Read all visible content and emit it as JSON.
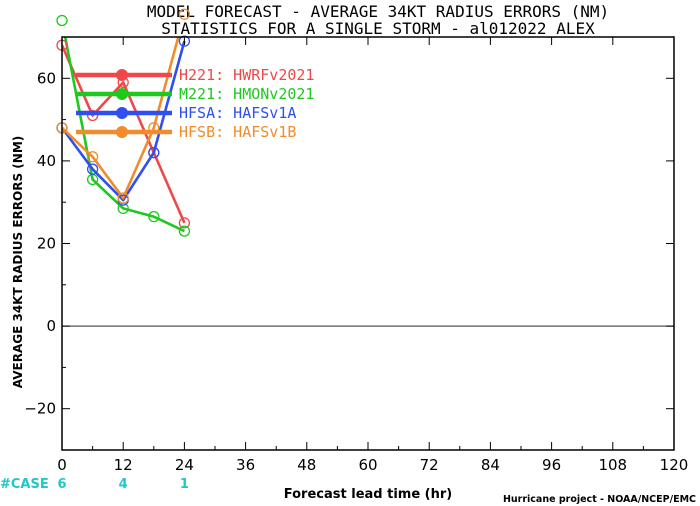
{
  "chart_data": {
    "type": "line",
    "title": "MODEL FORECAST - AVERAGE 34KT RADIUS ERRORS (NM)",
    "subtitle": "STATISTICS FOR A SINGLE STORM - al012022_ALEX",
    "xlabel": "Forecast lead time (hr)",
    "ylabel": "AVERAGE 34KT RADIUS ERRORS (NM)",
    "xlim": [
      0,
      120
    ],
    "ylim": [
      -30,
      70
    ],
    "xticks": [
      0,
      12,
      24,
      36,
      48,
      60,
      72,
      84,
      96,
      108,
      120
    ],
    "yticks": [
      -20,
      0,
      20,
      40,
      60
    ],
    "zero_line": true,
    "legend_position": "top-left",
    "series": [
      {
        "name": "H221: HWRFv2021",
        "color": "#f04848",
        "x": [
          0,
          6,
          12,
          18,
          24
        ],
        "y": [
          68,
          51,
          59,
          42,
          25
        ]
      },
      {
        "name": "M221: HMONv2021",
        "color": "#1ec81e",
        "x": [
          0,
          6,
          12,
          18,
          24
        ],
        "y": [
          74,
          35.5,
          28.5,
          26.5,
          23
        ]
      },
      {
        "name": "HFSA: HAFSv1A",
        "color": "#2f4ff0",
        "x": [
          0,
          6,
          12,
          18,
          24
        ],
        "y": [
          48,
          38,
          30.5,
          42,
          69
        ]
      },
      {
        "name": "HFSB: HAFSv1B",
        "color": "#f08c2a",
        "x": [
          0,
          6,
          12,
          18,
          24
        ],
        "y": [
          48,
          41,
          31,
          48,
          75.5
        ]
      }
    ],
    "cases": {
      "label": "#CASE",
      "values": [
        {
          "x": 0,
          "count": "6"
        },
        {
          "x": 12,
          "count": "4"
        },
        {
          "x": 24,
          "count": "1"
        }
      ]
    },
    "credit": "Hurricane project - NOAA/NCEP/EMC"
  }
}
